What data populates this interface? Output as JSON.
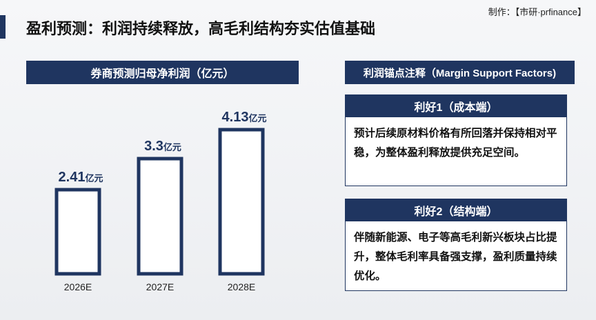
{
  "header": {
    "title": "盈利预测：利润持续释放，高毛利结构夯实估值基础",
    "credit": "制作：【市研·prfinance】"
  },
  "chart_data": {
    "type": "bar",
    "title": "券商预测归母净利润（亿元）",
    "categories": [
      "2026E",
      "2027E",
      "2028E"
    ],
    "values": [
      2.41,
      3.3,
      4.13
    ],
    "unit": "亿元",
    "color": "#1f3560",
    "ylim": [
      0,
      5
    ]
  },
  "panel": {
    "title": "利润锚点注释（Margin Support Factors)",
    "cards": [
      {
        "title": "利好1（成本端）",
        "text": "预计后续原材料价格有所回落并保持相对平稳，为整体盈利释放提供充足空间。"
      },
      {
        "title": "利好2（结构端）",
        "text": "伴随新能源、电子等高毛利新兴板块占比提升，整体毛利率具备强支撑，盈利质量持续优化。"
      }
    ]
  }
}
